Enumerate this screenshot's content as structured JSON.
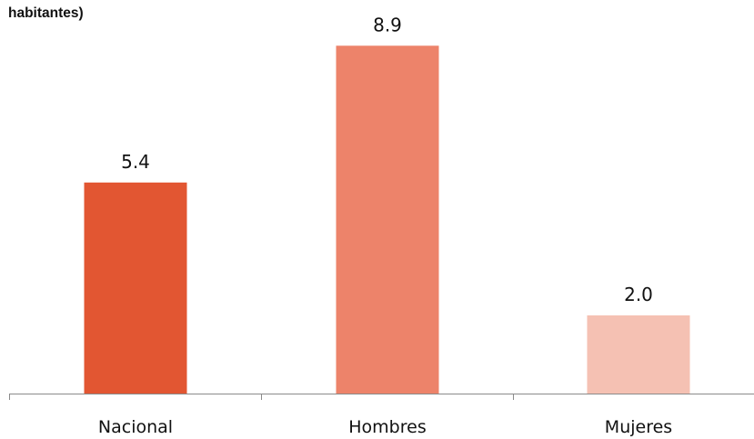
{
  "chart_data": {
    "type": "bar",
    "title": "habitantes)",
    "categories": [
      "Nacional",
      "Hombres",
      "Mujeres"
    ],
    "values": [
      5.4,
      8.9,
      2.0
    ],
    "value_labels": [
      "5.4",
      "8.9",
      "2.0"
    ],
    "colors": [
      "#e25632",
      "#ed836a",
      "#f5c1b3"
    ],
    "xlabel": "",
    "ylabel": "",
    "ylim": [
      0,
      10
    ],
    "grid": false,
    "legend": "none"
  }
}
